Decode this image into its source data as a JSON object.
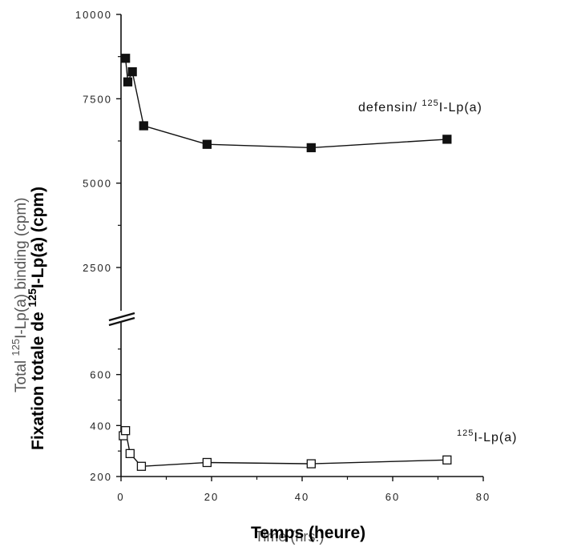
{
  "chart_data": {
    "type": "line",
    "x_ticks": [
      "0",
      "20",
      "40",
      "60",
      "80"
    ],
    "y_ticks_upper": [
      "2500",
      "5000",
      "7500",
      "10000"
    ],
    "y_ticks_lower": [
      "200",
      "400",
      "600"
    ],
    "xlim": [
      0,
      80
    ],
    "ylim_upper": [
      2500,
      10000
    ],
    "ylim_lower": [
      200,
      800
    ],
    "broken_y_axis": true,
    "series": [
      {
        "label_prefix": "defensin/ ",
        "label_sup": "125",
        "label_suffix": "I-Lp(a)",
        "marker": "filled-square",
        "x": [
          1,
          1.5,
          2.5,
          5,
          19,
          42,
          72
        ],
        "y": [
          8700,
          8000,
          8300,
          6700,
          6150,
          6050,
          6300
        ]
      },
      {
        "label_prefix": "",
        "label_sup": "125",
        "label_suffix": "I-Lp(a)",
        "marker": "open-square",
        "x": [
          0.5,
          1,
          2,
          4.5,
          19,
          42,
          72
        ],
        "y": [
          360,
          380,
          290,
          240,
          255,
          250,
          265
        ]
      }
    ],
    "ylabel_original": {
      "prefix": "Total ",
      "sup": "125",
      "suffix": "I-Lp(a) binding  (cpm)"
    },
    "ylabel_overlay": {
      "prefix": "Fixation totale de ",
      "sup": "125",
      "suffix": "I-Lp(a) (cpm)"
    },
    "xlabel_original": "Time  (hrs.)",
    "xlabel_overlay": "Temps (heure)"
  }
}
